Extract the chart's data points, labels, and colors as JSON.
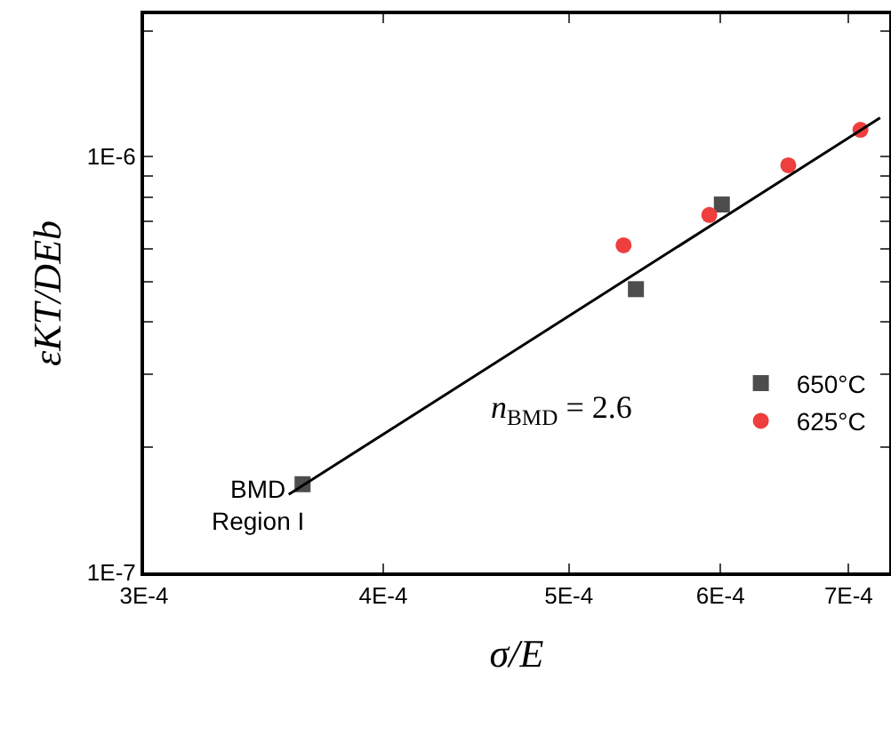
{
  "chart_data": {
    "type": "scatter",
    "xlabel": "σ/E",
    "ylabel": "ε̇KT/DEb",
    "annotations": [
      "n$_{BMD}$ = 2.6",
      "BMD Region I"
    ],
    "series": [
      {
        "name": "650°C",
        "color": "#4d4d4d",
        "marker": "square",
        "x": [
          0.000363,
          0.000542,
          0.000601
        ],
        "values": [
          1.63e-07,
          4.8e-07,
          7.67e-07
        ]
      },
      {
        "name": "625°C",
        "color": "#ef3e3e",
        "marker": "circle",
        "x": [
          0.000534,
          0.000592,
          0.000651,
          0.00071
        ],
        "values": [
          6.12e-07,
          7.24e-07,
          9.53e-07,
          1.16e-06
        ]
      },
      {
        "type": "line",
        "color": "#000000",
        "marker": "none",
        "line_style": "solid",
        "x": [
          0.000357,
          0.000727
        ],
        "values": [
          1.54e-07,
          1.24e-06
        ]
      }
    ],
    "log": "xy",
    "xlim": [
      0.0003,
      0.000735
    ],
    "ylim": [
      1e-07,
      2.2e-06
    ],
    "xticks": [
      {
        "value": 0.0003,
        "label": "3E-4"
      },
      {
        "value": 0.0004,
        "label": "4E-4"
      },
      {
        "value": 0.0005,
        "label": "5E-4"
      },
      {
        "value": 0.0006,
        "label": "6E-4"
      },
      {
        "value": 0.0007,
        "label": "7E-4"
      }
    ],
    "yticks": [
      {
        "value": 1e-07,
        "label": "1E-7"
      },
      {
        "value": 2e-07,
        "label": null
      },
      {
        "value": 3e-07,
        "label": null
      },
      {
        "value": 4e-07,
        "label": null
      },
      {
        "value": 5e-07,
        "label": null
      },
      {
        "value": 6e-07,
        "label": null
      },
      {
        "value": 7e-07,
        "label": null
      },
      {
        "value": 8e-07,
        "label": null
      },
      {
        "value": 9e-07,
        "label": null
      },
      {
        "value": 1e-06,
        "label": "1E-6"
      },
      {
        "value": 2e-06,
        "label": null
      }
    ],
    "grid": false,
    "legend": "bottom right"
  }
}
